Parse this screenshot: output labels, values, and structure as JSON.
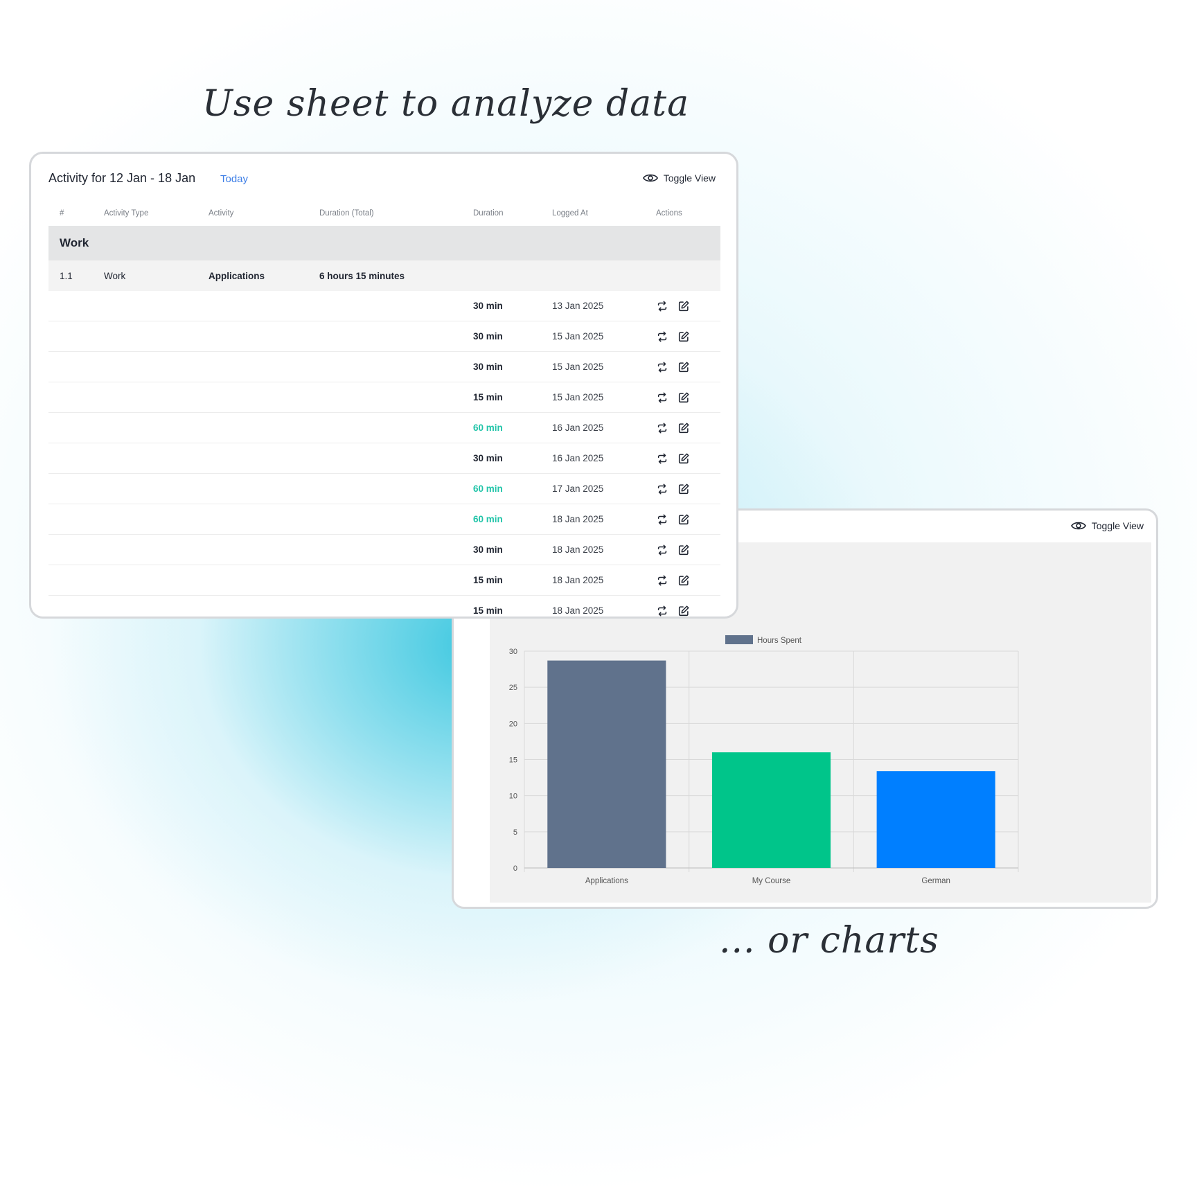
{
  "captions": {
    "top": "Use sheet to analyze data",
    "bottom": "... or charts"
  },
  "table_card": {
    "title": "Activity for 12 Jan - 18 Jan",
    "today_link": "Today",
    "toggle_label": "Toggle View",
    "columns": [
      "#",
      "Activity Type",
      "Activity",
      "Duration (Total)",
      "Duration",
      "Logged At",
      "Actions"
    ],
    "group": {
      "label": "Work"
    },
    "activity": {
      "index": "1.1",
      "type": "Work",
      "name": "Applications",
      "total": "6 hours 15 minutes"
    },
    "entries": [
      {
        "duration": "30 min",
        "logged_at": "13 Jan 2025",
        "highlight": false
      },
      {
        "duration": "30 min",
        "logged_at": "15 Jan 2025",
        "highlight": false
      },
      {
        "duration": "30 min",
        "logged_at": "15 Jan 2025",
        "highlight": false
      },
      {
        "duration": "15 min",
        "logged_at": "15 Jan 2025",
        "highlight": false
      },
      {
        "duration": "60 min",
        "logged_at": "16 Jan 2025",
        "highlight": true
      },
      {
        "duration": "30 min",
        "logged_at": "16 Jan 2025",
        "highlight": false
      },
      {
        "duration": "60 min",
        "logged_at": "17 Jan 2025",
        "highlight": true
      },
      {
        "duration": "60 min",
        "logged_at": "18 Jan 2025",
        "highlight": true
      },
      {
        "duration": "30 min",
        "logged_at": "18 Jan 2025",
        "highlight": false
      },
      {
        "duration": "15 min",
        "logged_at": "18 Jan 2025",
        "highlight": false
      },
      {
        "duration": "15 min",
        "logged_at": "18 Jan 2025",
        "highlight": false
      }
    ],
    "action_icons": [
      "repeat-icon",
      "edit-icon"
    ],
    "colors": {
      "highlight_duration": "#20c4a8",
      "link": "#3d7ee6"
    }
  },
  "chart_card": {
    "toggle_label": "Toggle View"
  },
  "chart_data": {
    "type": "bar",
    "categories": [
      "Applications",
      "My Course",
      "German"
    ],
    "series": [
      {
        "name": "Hours Spent",
        "values": [
          28.7,
          16,
          13.4
        ]
      }
    ],
    "bar_colors": [
      "#60728c",
      "#00c58a",
      "#007fff"
    ],
    "ylim": [
      0,
      30
    ],
    "yticks": [
      0,
      5,
      10,
      15,
      20,
      25,
      30
    ],
    "legend": "top-center",
    "grid": true
  }
}
